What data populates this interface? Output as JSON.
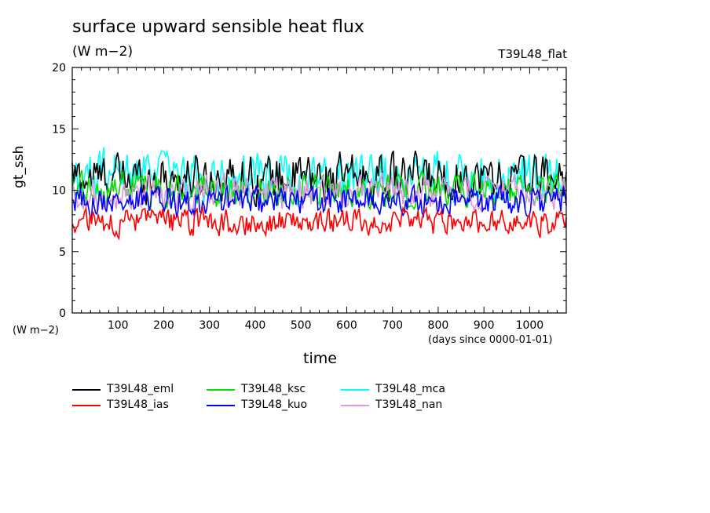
{
  "chart_data": {
    "type": "line",
    "title": "surface upward sensible heat flux",
    "units": "(W m−2)",
    "experiment": "T39L48_flat",
    "ylabel": "gt_ssh",
    "yunits": "(W m−2)",
    "xlabel": "time",
    "xunits": "(days since 0000-01-01)",
    "xlim": [
      0,
      1080
    ],
    "ylim": [
      0,
      20
    ],
    "xticks": [
      "100",
      "200",
      "300",
      "400",
      "500",
      "600",
      "700",
      "800",
      "900",
      "1000"
    ],
    "yticks": [
      "0",
      "5",
      "10",
      "15",
      "20"
    ],
    "series": [
      {
        "name": "T39L48_eml",
        "color": "#000000",
        "mean": 11.0,
        "amp": 1.4
      },
      {
        "name": "T39L48_ias",
        "color": "#ff0000",
        "mean": 7.4,
        "amp": 0.8
      },
      {
        "name": "T39L48_ksc",
        "color": "#00e000",
        "mean": 10.0,
        "amp": 1.0
      },
      {
        "name": "T39L48_kuo",
        "color": "#0000ff",
        "mean": 9.1,
        "amp": 0.9
      },
      {
        "name": "T39L48_mca",
        "color": "#00ffff",
        "mean": 11.2,
        "amp": 1.5
      },
      {
        "name": "T39L48_nan",
        "color": "#dd99dd",
        "mean": 9.8,
        "amp": 1.0
      }
    ]
  }
}
